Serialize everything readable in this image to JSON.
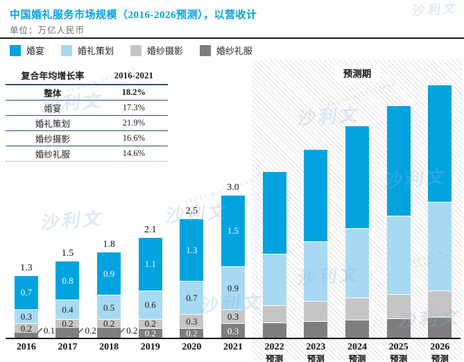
{
  "header": {
    "title": "中国婚礼服务市场规模（2016-2026预测），以营收计",
    "subtitle": "单位：万亿人民币"
  },
  "legend": [
    {
      "label": "婚宴",
      "color": "#00A3E0"
    },
    {
      "label": "婚礼策划",
      "color": "#A8D9F2"
    },
    {
      "label": "婚纱摄影",
      "color": "#C5C5C5"
    },
    {
      "label": "婚纱礼服",
      "color": "#7E7E7E"
    }
  ],
  "cagr_table": {
    "col1_header": "复合年均增长率",
    "col2_header": "2016-2021",
    "rows": [
      {
        "label": "整体",
        "value": "18.2%"
      },
      {
        "label": "婚宴",
        "value": "17.3%"
      },
      {
        "label": "婚礼策划",
        "value": "21.9%"
      },
      {
        "label": "婚纱摄影",
        "value": "16.6%"
      },
      {
        "label": "婚纱礼服",
        "value": "14.6%"
      }
    ]
  },
  "forecast": {
    "label": "预测期"
  },
  "watermark": {
    "logo_text": "沙利文",
    "en_text": "FROST & SULLIVAN"
  },
  "chart_data": {
    "type": "bar",
    "stacked": true,
    "title": "中国婚礼服务市场规模（2016-2026预测），以营收计",
    "unit": "万亿人民币",
    "ylim": [
      0,
      5.5
    ],
    "grid": false,
    "legend_position": "top-left",
    "forecast_categories_start_index": 6,
    "categories": [
      [
        "2016"
      ],
      [
        "2017"
      ],
      [
        "2018"
      ],
      [
        "2019"
      ],
      [
        "2020"
      ],
      [
        "2021"
      ],
      [
        "2022",
        "预测"
      ],
      [
        "2023",
        "预测"
      ],
      [
        "2024",
        "预测"
      ],
      [
        "2025",
        "预测"
      ],
      [
        "2026",
        "预测"
      ]
    ],
    "totals": [
      "1.3",
      "1.5",
      "1.8",
      "2.1",
      "2.5",
      "3.0",
      "",
      "",
      "",
      "",
      ""
    ],
    "series": [
      {
        "name": "婚宴",
        "color": "#00A3E0",
        "label_color": "#ffffff",
        "values": [
          0.7,
          0.8,
          0.9,
          1.1,
          1.3,
          1.5,
          1.73,
          1.93,
          2.15,
          2.31,
          2.46
        ],
        "labels": [
          "0.7",
          "0.8",
          "0.9",
          "1.1",
          "1.3",
          "1.5",
          "",
          "",
          "",
          "",
          ""
        ]
      },
      {
        "name": "婚礼策划",
        "color": "#A8D9F2",
        "label_color": "#1a1a1a",
        "values": [
          0.3,
          0.4,
          0.5,
          0.6,
          0.7,
          0.9,
          1.07,
          1.26,
          1.45,
          1.65,
          1.86
        ],
        "labels": [
          "0.3",
          "0.4",
          "0.5",
          "0.6",
          "0.7",
          "0.9",
          "",
          "",
          "",
          "",
          ""
        ]
      },
      {
        "name": "婚纱摄影",
        "color": "#C5C5C5",
        "label_color": "#1a1a1a",
        "values": [
          0.2,
          0.2,
          0.2,
          0.2,
          0.3,
          0.3,
          0.37,
          0.42,
          0.47,
          0.51,
          0.56
        ],
        "labels": [
          "0.2",
          "0.2",
          "0.2",
          "0.2",
          "0.3",
          "0.3",
          "",
          "",
          "",
          "",
          ""
        ]
      },
      {
        "name": "婚纱礼服",
        "color": "#7E7E7E",
        "label_color": "#ffffff",
        "values": [
          0.1,
          0.2,
          0.2,
          0.2,
          0.2,
          0.3,
          0.32,
          0.35,
          0.38,
          0.41,
          0.44
        ],
        "labels": [
          "0.1",
          "0.2",
          "0.2",
          "0.2",
          "0.2",
          "0.3",
          "",
          "",
          "",
          "",
          ""
        ],
        "outside": [
          true,
          true,
          true,
          false,
          false,
          false,
          false,
          false,
          false,
          false,
          false
        ]
      }
    ],
    "note": "2022-2026 segment values estimated from bar heights; no data labels shown in forecast period"
  }
}
